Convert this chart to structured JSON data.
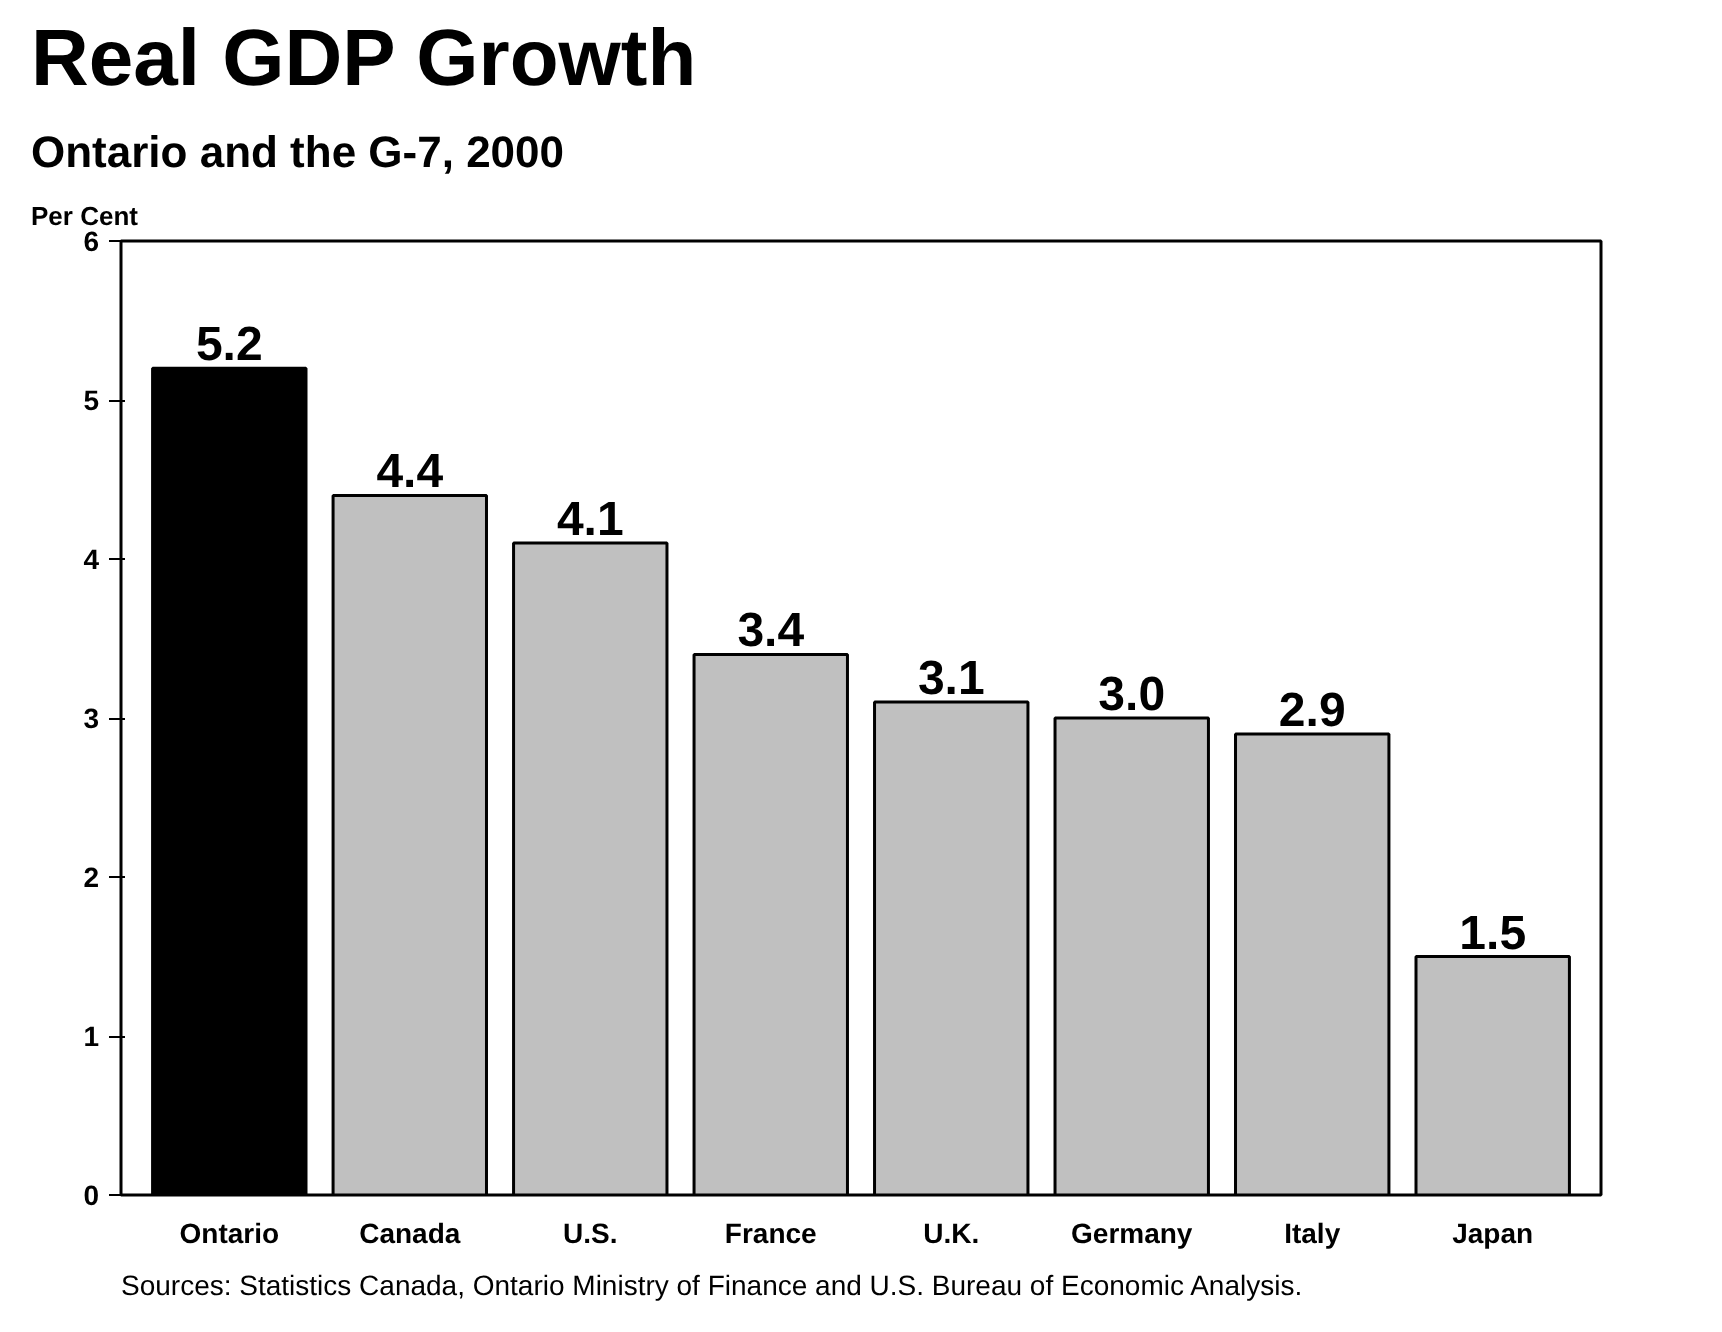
{
  "chart_data": {
    "type": "bar",
    "title": "Real GDP Growth",
    "subtitle": "Ontario and the G-7, 2000",
    "ylabel": "Per Cent",
    "categories": [
      "Ontario",
      "Canada",
      "U.S.",
      "France",
      "U.K.",
      "Germany",
      "Italy",
      "Japan"
    ],
    "values": [
      5.2,
      4.4,
      4.1,
      3.4,
      3.1,
      3.0,
      2.9,
      1.5
    ],
    "colors": [
      "#000000",
      "#c0c0c0",
      "#c0c0c0",
      "#c0c0c0",
      "#c0c0c0",
      "#c0c0c0",
      "#c0c0c0",
      "#c0c0c0"
    ],
    "value_labels": [
      "5.2",
      "4.4",
      "4.1",
      "3.4",
      "3.1",
      "3.0",
      "2.9",
      "1.5"
    ],
    "ylim": [
      0,
      6
    ],
    "yticks": [
      0,
      1,
      2,
      3,
      4,
      5,
      6
    ],
    "grid": false,
    "annotations": [
      "Sources:  Statistics Canada, Ontario Ministry of Finance and U.S. Bureau of Economic Analysis."
    ]
  }
}
